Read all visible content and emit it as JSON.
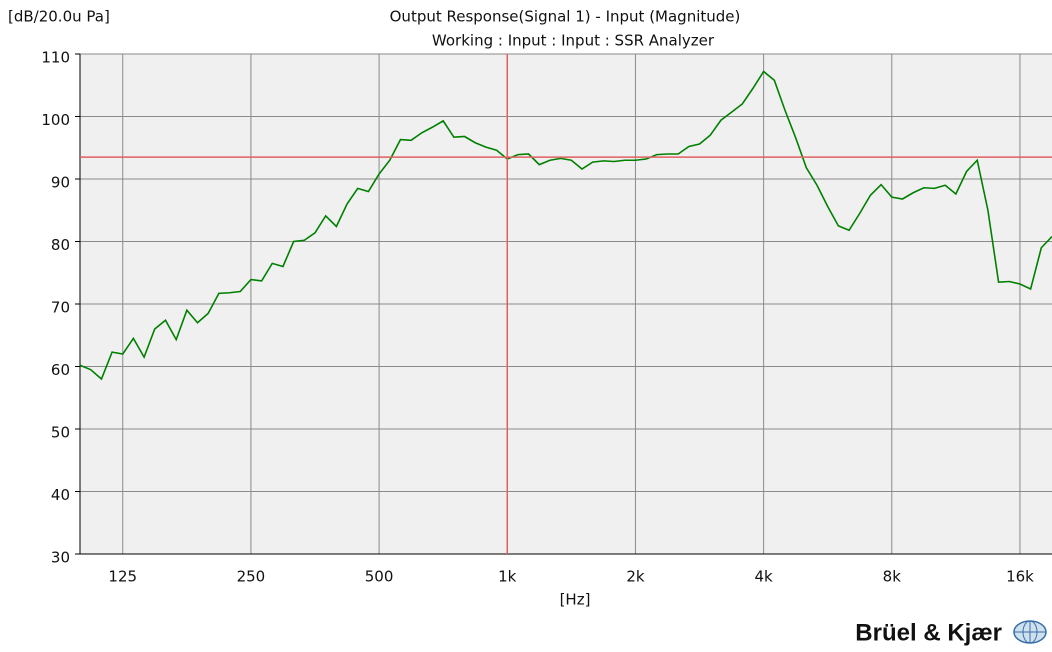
{
  "chart_data": {
    "type": "line",
    "title": "Output Response(Signal 1) - Input (Magnitude)",
    "subtitle": "Working : Input : Input : SSR Analyzer",
    "ylabel": "[dB/20.0u Pa]",
    "xlabel": "[Hz]",
    "brand": "Brüel & Kjær",
    "xscale": "log",
    "grid": true,
    "color": "#008000",
    "cursor": {
      "x": 1000,
      "y": 93.5,
      "color": "#e06060"
    },
    "xlim": [
      99.2,
      19027
    ],
    "ylim": [
      30,
      110
    ],
    "xticks": [
      125,
      250,
      500,
      {
        "value": 1000,
        "label": "1k"
      },
      {
        "value": 2000,
        "label": "2k"
      },
      {
        "value": 4000,
        "label": "4k"
      },
      {
        "value": 8000,
        "label": "8k"
      },
      {
        "value": 16000,
        "label": "16k"
      }
    ],
    "yticks": [
      30,
      40,
      50,
      60,
      70,
      80,
      90,
      100,
      110
    ],
    "x": [
      99.2,
      105.1,
      111.4,
      118.0,
      125,
      132.4,
      140.3,
      148.6,
      157.5,
      166.9,
      176.8,
      187.3,
      198.4,
      210.2,
      222.7,
      236.0,
      250,
      264.9,
      280.6,
      297.3,
      315.0,
      333.7,
      353.6,
      374.6,
      396.9,
      420.4,
      445.4,
      471.9,
      500,
      529.7,
      561.2,
      594.6,
      630.0,
      667.4,
      707.1,
      749.2,
      793.7,
      840.9,
      890.9,
      943.9,
      1000,
      1059,
      1122,
      1189,
      1260,
      1335,
      1414,
      1498,
      1587,
      1682,
      1782,
      1888,
      2000,
      2119,
      2245,
      2378,
      2520,
      2670,
      2828,
      2997,
      3175,
      3364,
      3564,
      3775,
      4000,
      4238,
      4490,
      4757,
      5040,
      5339,
      5657,
      5993,
      6350,
      6727,
      7127,
      7551,
      8000,
      8476,
      8980,
      9514,
      10079,
      10679,
      11314,
      11986,
      12699,
      13454,
      14254,
      15102,
      16000,
      16951,
      17959,
      19027
    ],
    "values": [
      60.2,
      59.5,
      58,
      62.3,
      62,
      64.5,
      61.5,
      66,
      67.4,
      64.3,
      69,
      67,
      68.5,
      71.7,
      71.8,
      72,
      73.9,
      73.7,
      76.5,
      76,
      80,
      80.2,
      81.4,
      84.1,
      82.4,
      86,
      88.5,
      88,
      90.8,
      93,
      96.3,
      96.2,
      97.4,
      98.3,
      99.3,
      96.7,
      96.8,
      95.8,
      95.1,
      94.6,
      93.2,
      93.9,
      94,
      92.3,
      93,
      93.3,
      93,
      91.6,
      92.7,
      92.9,
      92.8,
      93,
      93,
      93.2,
      93.9,
      94,
      94,
      95.2,
      95.6,
      97,
      99.4,
      100.7,
      102,
      104.5,
      107.2,
      105.8,
      101,
      96.6,
      91.8,
      89,
      85.6,
      82.5,
      81.8,
      84.5,
      87.4,
      89.1,
      87.1,
      86.8,
      87.8,
      88.6,
      88.5,
      89,
      87.6,
      91.2,
      93,
      85,
      73.5,
      73.6,
      73.2,
      72.4,
      79,
      80.8
    ]
  }
}
